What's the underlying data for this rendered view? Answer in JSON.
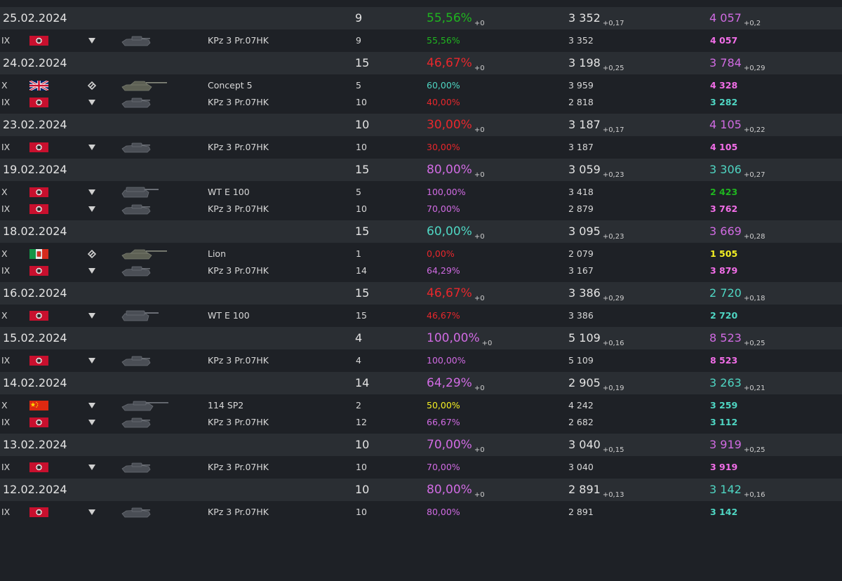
{
  "colors": {
    "green": "#1fb51f",
    "red": "#e8272c",
    "purple": "#d16be3",
    "teal": "#4fd6c3",
    "yellow": "#f5f023",
    "pink": "#f26ee8"
  },
  "days": [
    {
      "date": "25.02.2024",
      "battles": "9",
      "winrate": "55,56%",
      "winrate_color": "green",
      "winrate_delta": "+0",
      "avg": "3 352",
      "avg_delta": "+0,17",
      "wn": "4 057",
      "wn_color": "purple",
      "wn_delta": "+0,2",
      "vehicles": [
        {
          "tier": "IX",
          "nation": "germany-flag-icon",
          "type": "td-type-icon",
          "name": "KPz 3 Pr.07HK",
          "battles": "9",
          "winrate": "55,56%",
          "winrate_color": "green",
          "avg": "3 352",
          "wn": "4 057",
          "wn_color": "pink",
          "tank": "light-tank-icon"
        }
      ]
    },
    {
      "date": "24.02.2024",
      "battles": "15",
      "winrate": "46,67%",
      "winrate_color": "red",
      "winrate_delta": "+0",
      "avg": "3 198",
      "avg_delta": "+0,25",
      "wn": "3 784",
      "wn_color": "purple",
      "wn_delta": "+0,29",
      "vehicles": [
        {
          "tier": "X",
          "nation": "uk-flag-icon",
          "type": "medium-type-icon",
          "name": "Concept 5",
          "battles": "5",
          "winrate": "60,00%",
          "winrate_color": "teal",
          "avg": "3 959",
          "wn": "4 328",
          "wn_color": "pink",
          "tank": "medium-tank-icon"
        },
        {
          "tier": "IX",
          "nation": "germany-flag-icon",
          "type": "td-type-icon",
          "name": "KPz 3 Pr.07HK",
          "battles": "10",
          "winrate": "40,00%",
          "winrate_color": "red",
          "avg": "2 818",
          "wn": "3 282",
          "wn_color": "teal",
          "tank": "light-tank-icon"
        }
      ]
    },
    {
      "date": "23.02.2024",
      "battles": "10",
      "winrate": "30,00%",
      "winrate_color": "red",
      "winrate_delta": "+0",
      "avg": "3 187",
      "avg_delta": "+0,17",
      "wn": "4 105",
      "wn_color": "purple",
      "wn_delta": "+0,22",
      "vehicles": [
        {
          "tier": "IX",
          "nation": "germany-flag-icon",
          "type": "td-type-icon",
          "name": "KPz 3 Pr.07HK",
          "battles": "10",
          "winrate": "30,00%",
          "winrate_color": "red",
          "avg": "3 187",
          "wn": "4 105",
          "wn_color": "pink",
          "tank": "light-tank-icon"
        }
      ]
    },
    {
      "date": "19.02.2024",
      "battles": "15",
      "winrate": "80,00%",
      "winrate_color": "purple",
      "winrate_delta": "+0",
      "avg": "3 059",
      "avg_delta": "+0,23",
      "wn": "3 306",
      "wn_color": "teal",
      "wn_delta": "+0,27",
      "vehicles": [
        {
          "tier": "X",
          "nation": "germany-flag-icon",
          "type": "td-type-icon",
          "name": "WT E 100",
          "battles": "5",
          "winrate": "100,00%",
          "winrate_color": "purple",
          "avg": "3 418",
          "wn": "2 423",
          "wn_color": "green",
          "tank": "heavy-tank-icon"
        },
        {
          "tier": "IX",
          "nation": "germany-flag-icon",
          "type": "td-type-icon",
          "name": "KPz 3 Pr.07HK",
          "battles": "10",
          "winrate": "70,00%",
          "winrate_color": "purple",
          "avg": "2 879",
          "wn": "3 762",
          "wn_color": "pink",
          "tank": "light-tank-icon"
        }
      ]
    },
    {
      "date": "18.02.2024",
      "battles": "15",
      "winrate": "60,00%",
      "winrate_color": "teal",
      "winrate_delta": "+0",
      "avg": "3 095",
      "avg_delta": "+0,23",
      "wn": "3 669",
      "wn_color": "purple",
      "wn_delta": "+0,28",
      "vehicles": [
        {
          "tier": "X",
          "nation": "italy-flag-icon",
          "type": "medium-type-icon",
          "name": "Lion",
          "battles": "1",
          "winrate": "0,00%",
          "winrate_color": "red",
          "avg": "2 079",
          "wn": "1 505",
          "wn_color": "yellow",
          "tank": "medium-tank-icon"
        },
        {
          "tier": "IX",
          "nation": "germany-flag-icon",
          "type": "td-type-icon",
          "name": "KPz 3 Pr.07HK",
          "battles": "14",
          "winrate": "64,29%",
          "winrate_color": "purple",
          "avg": "3 167",
          "wn": "3 879",
          "wn_color": "pink",
          "tank": "light-tank-icon"
        }
      ]
    },
    {
      "date": "16.02.2024",
      "battles": "15",
      "winrate": "46,67%",
      "winrate_color": "red",
      "winrate_delta": "+0",
      "avg": "3 386",
      "avg_delta": "+0,29",
      "wn": "2 720",
      "wn_color": "teal",
      "wn_delta": "+0,18",
      "vehicles": [
        {
          "tier": "X",
          "nation": "germany-flag-icon",
          "type": "td-type-icon",
          "name": "WT E 100",
          "battles": "15",
          "winrate": "46,67%",
          "winrate_color": "red",
          "avg": "3 386",
          "wn": "2 720",
          "wn_color": "teal",
          "tank": "heavy-tank-icon"
        }
      ]
    },
    {
      "date": "15.02.2024",
      "battles": "4",
      "winrate": "100,00%",
      "winrate_color": "purple",
      "winrate_delta": "+0",
      "avg": "5 109",
      "avg_delta": "+0,16",
      "wn": "8 523",
      "wn_color": "purple",
      "wn_delta": "+0,25",
      "vehicles": [
        {
          "tier": "IX",
          "nation": "germany-flag-icon",
          "type": "td-type-icon",
          "name": "KPz 3 Pr.07HK",
          "battles": "4",
          "winrate": "100,00%",
          "winrate_color": "purple",
          "avg": "5 109",
          "wn": "8 523",
          "wn_color": "pink",
          "tank": "light-tank-icon"
        }
      ]
    },
    {
      "date": "14.02.2024",
      "battles": "14",
      "winrate": "64,29%",
      "winrate_color": "purple",
      "winrate_delta": "+0",
      "avg": "2 905",
      "avg_delta": "+0,19",
      "wn": "3 263",
      "wn_color": "teal",
      "wn_delta": "+0,21",
      "vehicles": [
        {
          "tier": "X",
          "nation": "china-flag-icon",
          "type": "td-type-icon",
          "name": "114 SP2",
          "battles": "2",
          "winrate": "50,00%",
          "winrate_color": "yellow",
          "avg": "4 242",
          "wn": "3 259",
          "wn_color": "teal",
          "tank": "long-td-icon"
        },
        {
          "tier": "IX",
          "nation": "germany-flag-icon",
          "type": "td-type-icon",
          "name": "KPz 3 Pr.07HK",
          "battles": "12",
          "winrate": "66,67%",
          "winrate_color": "purple",
          "avg": "2 682",
          "wn": "3 112",
          "wn_color": "teal",
          "tank": "light-tank-icon"
        }
      ]
    },
    {
      "date": "13.02.2024",
      "battles": "10",
      "winrate": "70,00%",
      "winrate_color": "purple",
      "winrate_delta": "+0",
      "avg": "3 040",
      "avg_delta": "+0,15",
      "wn": "3 919",
      "wn_color": "purple",
      "wn_delta": "+0,25",
      "vehicles": [
        {
          "tier": "IX",
          "nation": "germany-flag-icon",
          "type": "td-type-icon",
          "name": "KPz 3 Pr.07HK",
          "battles": "10",
          "winrate": "70,00%",
          "winrate_color": "purple",
          "avg": "3 040",
          "wn": "3 919",
          "wn_color": "pink",
          "tank": "light-tank-icon"
        }
      ]
    },
    {
      "date": "12.02.2024",
      "battles": "10",
      "winrate": "80,00%",
      "winrate_color": "purple",
      "winrate_delta": "+0",
      "avg": "2 891",
      "avg_delta": "+0,13",
      "wn": "3 142",
      "wn_color": "teal",
      "wn_delta": "+0,16",
      "vehicles": [
        {
          "tier": "IX",
          "nation": "germany-flag-icon",
          "type": "td-type-icon",
          "name": "KPz 3 Pr.07HK",
          "battles": "10",
          "winrate": "80,00%",
          "winrate_color": "purple",
          "avg": "2 891",
          "wn": "3 142",
          "wn_color": "teal",
          "tank": "light-tank-icon"
        }
      ]
    }
  ]
}
